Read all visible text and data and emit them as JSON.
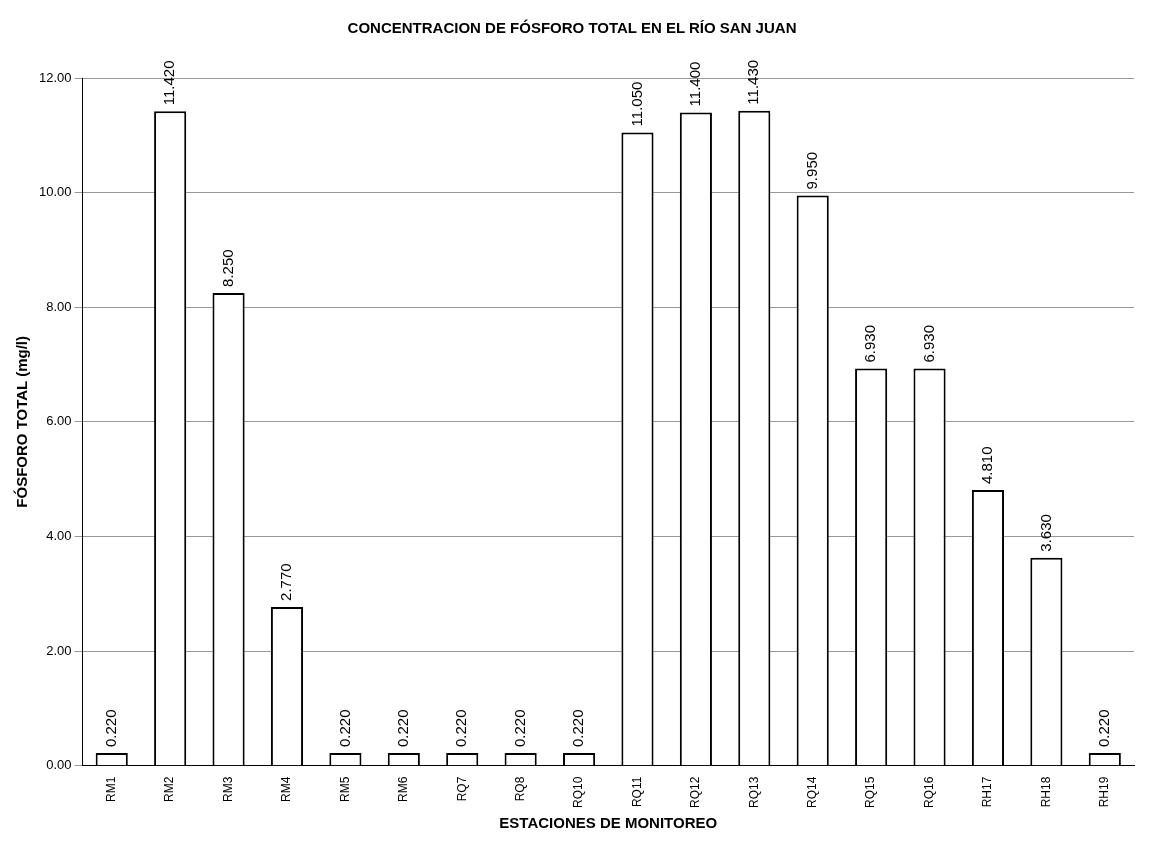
{
  "chart_data": {
    "type": "bar",
    "title": "CONCENTRACION DE FÓSFORO TOTAL EN EL RÍO SAN JUAN",
    "xlabel": "ESTACIONES DE MONITOREO",
    "ylabel": "FÓSFORO TOTAL (mg/l)",
    "categories": [
      "RM1",
      "RM2",
      "RM3",
      "RM4",
      "RM5",
      "RM6",
      "RQ7",
      "RQ8",
      "RQ10",
      "RQ11",
      "RQ12",
      "RQ13",
      "RQ14",
      "RQ15",
      "RQ16",
      "RH17",
      "RH18",
      "RH19"
    ],
    "values": [
      0.22,
      11.42,
      8.25,
      2.77,
      0.22,
      0.22,
      0.22,
      0.22,
      0.22,
      11.05,
      11.4,
      11.43,
      9.95,
      6.93,
      6.93,
      4.81,
      3.63,
      0.22
    ],
    "value_labels": [
      "0.220",
      "11.420",
      "8.250",
      "2.770",
      "0.220",
      "0.220",
      "0.220",
      "0.220",
      "0.220",
      "11.050",
      "11.400",
      "11.430",
      "9.950",
      "6.930",
      "6.930",
      "4.810",
      "3.630",
      "0.220"
    ],
    "color": "#ffffff",
    "ylim": [
      0,
      12
    ],
    "yticks": [
      {
        "value": 0,
        "label": "0.00"
      },
      {
        "value": 2,
        "label": "2.00"
      },
      {
        "value": 4,
        "label": "4.00"
      },
      {
        "value": 6,
        "label": "6.00"
      },
      {
        "value": 8,
        "label": "8.00"
      },
      {
        "value": 10,
        "label": "10.00"
      },
      {
        "value": 12,
        "label": "12.00"
      }
    ],
    "grid": "y"
  }
}
